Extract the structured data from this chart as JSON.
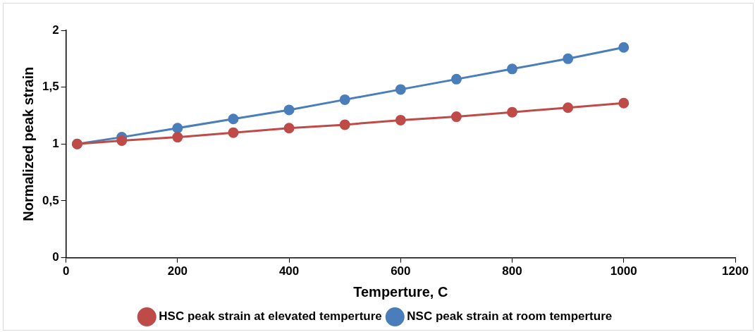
{
  "chart_data": {
    "type": "line",
    "xlabel": "Temperture, C",
    "ylabel": "Normalized peak strain",
    "x": [
      20,
      100,
      200,
      300,
      400,
      500,
      600,
      700,
      800,
      900,
      1000
    ],
    "series": [
      {
        "name": "NSC peak strain at room temperture",
        "color": "#4a7ebb",
        "values": [
          1.0,
          1.06,
          1.14,
          1.22,
          1.3,
          1.39,
          1.48,
          1.57,
          1.66,
          1.75,
          1.85
        ]
      },
      {
        "name": "HSC peak strain at elevated temperture",
        "color": "#be4b48",
        "values": [
          1.0,
          1.03,
          1.06,
          1.1,
          1.14,
          1.17,
          1.21,
          1.24,
          1.28,
          1.32,
          1.36
        ]
      }
    ],
    "xlim": [
      0,
      1200
    ],
    "xticks": [
      0,
      200,
      400,
      600,
      800,
      1000,
      1200
    ],
    "ylim": [
      0,
      2
    ],
    "yticks": [
      0,
      {
        "value": 0.5,
        "label": "0,5"
      },
      1,
      {
        "value": 1.5,
        "label": "1,5"
      },
      2
    ],
    "grid": false,
    "legend": "bottom",
    "marker": "circle",
    "line_style": "solid"
  }
}
